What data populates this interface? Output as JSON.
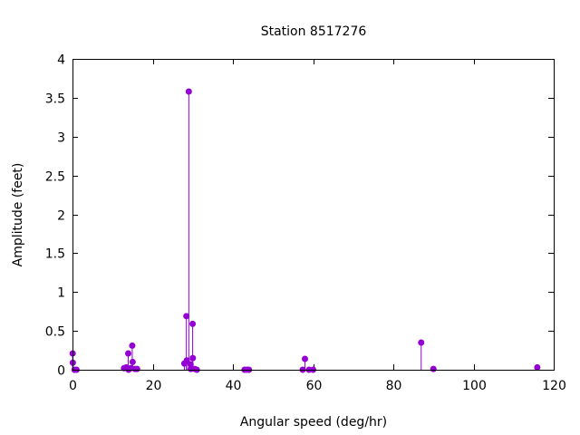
{
  "chart_data": {
    "type": "scatter",
    "style": "impulses-with-points",
    "title": "Station 8517276",
    "xlabel": "Angular speed (deg/hr)",
    "ylabel": "Amplitude (feet)",
    "xlim": [
      0,
      120
    ],
    "ylim": [
      0,
      4
    ],
    "x_ticks": [
      0,
      20,
      40,
      60,
      80,
      100,
      120
    ],
    "y_ticks": [
      0,
      0.5,
      1,
      1.5,
      2,
      2.5,
      3,
      3.5,
      4
    ],
    "grid": false,
    "legend": "none",
    "color": "#9400d3",
    "points": [
      {
        "x": 0.04,
        "y": 0.21
      },
      {
        "x": 0.08,
        "y": 0.09
      },
      {
        "x": 0.5,
        "y": 0.0
      },
      {
        "x": 1.0,
        "y": 0.0
      },
      {
        "x": 12.85,
        "y": 0.02
      },
      {
        "x": 13.4,
        "y": 0.03
      },
      {
        "x": 13.9,
        "y": 0.21
      },
      {
        "x": 14.0,
        "y": 0.0
      },
      {
        "x": 14.5,
        "y": 0.02
      },
      {
        "x": 14.9,
        "y": 0.31
      },
      {
        "x": 15.0,
        "y": 0.1
      },
      {
        "x": 15.6,
        "y": 0.01
      },
      {
        "x": 16.1,
        "y": 0.01
      },
      {
        "x": 27.9,
        "y": 0.08
      },
      {
        "x": 28.4,
        "y": 0.69
      },
      {
        "x": 28.5,
        "y": 0.12
      },
      {
        "x": 29.0,
        "y": 3.58
      },
      {
        "x": 29.45,
        "y": 0.07
      },
      {
        "x": 29.5,
        "y": 0.01
      },
      {
        "x": 29.96,
        "y": 0.59
      },
      {
        "x": 30.0,
        "y": 0.15
      },
      {
        "x": 30.5,
        "y": 0.01
      },
      {
        "x": 31.0,
        "y": 0.0
      },
      {
        "x": 42.9,
        "y": 0.0
      },
      {
        "x": 43.5,
        "y": 0.0
      },
      {
        "x": 44.0,
        "y": 0.0
      },
      {
        "x": 57.4,
        "y": 0.0
      },
      {
        "x": 57.97,
        "y": 0.14
      },
      {
        "x": 58.98,
        "y": 0.0
      },
      {
        "x": 60.0,
        "y": 0.0
      },
      {
        "x": 86.95,
        "y": 0.35
      },
      {
        "x": 90.0,
        "y": 0.01
      },
      {
        "x": 115.9,
        "y": 0.03
      }
    ]
  }
}
